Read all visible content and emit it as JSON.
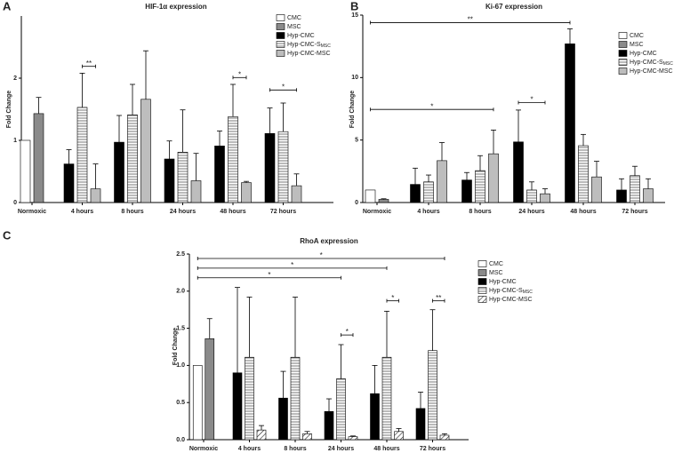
{
  "chart_data": [
    {
      "type": "bar",
      "panel_label": "A",
      "title": "HIF-1α expression",
      "y_label": "Fold Change",
      "categories": [
        "Normoxic",
        "4 hours",
        "8 hours",
        "24 hours",
        "48 hours",
        "72 hours"
      ],
      "ylim": [
        0,
        3
      ],
      "yticks": [
        0,
        1,
        2
      ],
      "series": [
        {
          "name": "CMC",
          "color": "#ffffff",
          "values": [
            1.0,
            null,
            null,
            null,
            null,
            null
          ],
          "errors": [
            null,
            null,
            null,
            null,
            null,
            null
          ]
        },
        {
          "name": "MSC",
          "color": "#8a8a8a",
          "values": [
            1.43,
            null,
            null,
            null,
            null,
            null
          ],
          "errors": [
            0.26,
            null,
            null,
            null,
            null,
            null
          ]
        },
        {
          "name": "Hyp-CMC",
          "color": "#000000",
          "values": [
            null,
            0.62,
            0.97,
            0.7,
            0.91,
            1.11
          ],
          "errors": [
            null,
            0.23,
            0.43,
            0.29,
            0.24,
            0.41
          ]
        },
        {
          "name": "Hyp-CMC-S",
          "subscript": "MSC",
          "color": "#ffffff",
          "pattern": "hstripe",
          "values": [
            null,
            1.53,
            1.41,
            0.81,
            1.38,
            1.14
          ],
          "errors": [
            null,
            0.55,
            0.49,
            0.68,
            0.52,
            0.46
          ]
        },
        {
          "name": "Hyp-CMC-MSC",
          "color": "#bdbdbd",
          "values": [
            null,
            0.22,
            1.66,
            0.35,
            0.32,
            0.27
          ],
          "errors": [
            null,
            0.4,
            0.78,
            0.44,
            0.02,
            0.19
          ]
        }
      ],
      "annotations": [
        {
          "text": "**",
          "y": 2.19,
          "from": [
            1,
            3
          ],
          "to": [
            1,
            4
          ]
        },
        {
          "text": "*",
          "y": 2.01,
          "from": [
            4,
            3
          ],
          "to": [
            4,
            4
          ]
        },
        {
          "text": "*",
          "y": 1.81,
          "from": [
            5,
            2
          ],
          "to": [
            5,
            4
          ]
        }
      ]
    },
    {
      "type": "bar",
      "panel_label": "B",
      "title": "Ki-67 expression",
      "y_label": "Fold Change",
      "categories": [
        "Normoxic",
        "4 hours",
        "8 hours",
        "24 hours",
        "48 hours",
        "72 hours"
      ],
      "ylim": [
        0,
        15
      ],
      "yticks": [
        0,
        5,
        10,
        15
      ],
      "series": [
        {
          "name": "CMC",
          "color": "#ffffff",
          "values": [
            1.0,
            null,
            null,
            null,
            null,
            null
          ],
          "errors": [
            null,
            null,
            null,
            null,
            null,
            null
          ]
        },
        {
          "name": "MSC",
          "color": "#8a8a8a",
          "values": [
            0.25,
            null,
            null,
            null,
            null,
            null
          ],
          "errors": [
            0.05,
            null,
            null,
            null,
            null,
            null
          ]
        },
        {
          "name": "Hyp-CMC",
          "color": "#000000",
          "values": [
            null,
            1.45,
            1.8,
            4.85,
            12.7,
            1.0
          ],
          "errors": [
            null,
            1.3,
            0.6,
            2.55,
            1.2,
            0.9
          ]
        },
        {
          "name": "Hyp-CMC-S",
          "subscript": "MSC",
          "color": "#ffffff",
          "pattern": "hstripe",
          "values": [
            null,
            1.65,
            2.55,
            1.0,
            4.55,
            2.15
          ],
          "errors": [
            null,
            0.55,
            1.2,
            0.65,
            0.9,
            0.75
          ]
        },
        {
          "name": "Hyp-CMC-MSC",
          "color": "#bdbdbd",
          "values": [
            null,
            3.35,
            3.9,
            0.7,
            2.05,
            1.1
          ],
          "errors": [
            null,
            1.45,
            1.9,
            0.4,
            1.25,
            0.8
          ]
        }
      ],
      "annotations": [
        {
          "text": "**",
          "y": 14.4,
          "from": [
            0,
            0
          ],
          "to": [
            4,
            2
          ]
        },
        {
          "text": "*",
          "y": 7.45,
          "from": [
            0,
            0
          ],
          "to": [
            2,
            4
          ]
        },
        {
          "text": "*",
          "y": 8.0,
          "from": [
            3,
            2
          ],
          "to": [
            3,
            4
          ]
        }
      ]
    },
    {
      "type": "bar",
      "panel_label": "C",
      "title": "RhoA expression",
      "y_label": "Fold Change",
      "categories": [
        "Normoxic",
        "4 hours",
        "8 hours",
        "24 hours",
        "48 hours",
        "72 hours"
      ],
      "ylim": [
        0,
        2.5
      ],
      "yticks": [
        {
          "value": 0,
          "label": "0.0"
        },
        0.5,
        {
          "value": 1,
          "label": "1.0"
        },
        1.5,
        {
          "value": 2,
          "label": "2.0"
        },
        2.5
      ],
      "series": [
        {
          "name": "CMC",
          "color": "#ffffff",
          "values": [
            1.0,
            null,
            null,
            null,
            null,
            null
          ],
          "errors": [
            null,
            null,
            null,
            null,
            null,
            null
          ]
        },
        {
          "name": "MSC",
          "color": "#8a8a8a",
          "values": [
            1.36,
            null,
            null,
            null,
            null,
            null
          ],
          "errors": [
            0.27,
            null,
            null,
            null,
            null,
            null
          ]
        },
        {
          "name": "Hyp-CMC",
          "color": "#000000",
          "values": [
            null,
            0.9,
            0.56,
            0.38,
            0.62,
            0.42
          ],
          "errors": [
            null,
            1.15,
            0.36,
            0.17,
            0.38,
            0.22
          ]
        },
        {
          "name": "Hyp-CMC-S",
          "subscript": "MSC",
          "color": "#ffffff",
          "pattern": "hstripe",
          "values": [
            null,
            1.11,
            1.11,
            0.82,
            1.11,
            1.2
          ],
          "errors": [
            null,
            0.81,
            0.81,
            0.46,
            0.62,
            0.55
          ]
        },
        {
          "name": "Hyp-CMC-MSC",
          "color": "#ffffff",
          "pattern": "diagonal",
          "values": [
            null,
            0.13,
            0.08,
            0.04,
            0.11,
            0.06
          ],
          "errors": [
            null,
            0.06,
            0.03,
            0.01,
            0.04,
            0.02
          ]
        }
      ],
      "annotations": [
        {
          "text": "*",
          "y": 2.44,
          "from": [
            0,
            0
          ],
          "to": [
            5,
            4
          ]
        },
        {
          "text": "*",
          "y": 2.31,
          "from": [
            0,
            0
          ],
          "to": [
            4,
            3
          ]
        },
        {
          "text": "*",
          "y": 2.18,
          "from": [
            0,
            0
          ],
          "to": [
            3,
            3
          ]
        },
        {
          "text": "*",
          "y": 1.41,
          "from": [
            3,
            3
          ],
          "to": [
            3,
            4
          ]
        },
        {
          "text": "*",
          "y": 1.87,
          "from": [
            4,
            3
          ],
          "to": [
            4,
            4
          ]
        },
        {
          "text": "**",
          "y": 1.87,
          "from": [
            5,
            3
          ],
          "to": [
            5,
            4
          ]
        }
      ]
    }
  ]
}
